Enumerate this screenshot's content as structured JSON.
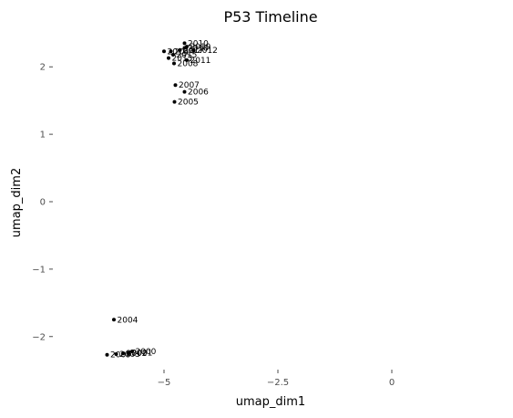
{
  "chart_data": {
    "type": "scatter",
    "title": "P53 Timeline",
    "xlabel": "umap_dim1",
    "ylabel": "umap_dim2",
    "xlim": [
      -7.5,
      2.5
    ],
    "ylim": [
      -2.45,
      2.45
    ],
    "x_ticks": [
      -5,
      -2.5,
      0
    ],
    "x_tick_labels": [
      "−5",
      "−2.5",
      "0"
    ],
    "y_ticks": [
      -2,
      -1,
      0,
      1,
      2
    ],
    "y_tick_labels": [
      "−2",
      "−1",
      "0",
      "1",
      "2"
    ],
    "grid": false,
    "points": [
      {
        "x": -4.55,
        "y": 2.35,
        "label": "2010"
      },
      {
        "x": -4.5,
        "y": 2.3,
        "label": "2019"
      },
      {
        "x": -4.55,
        "y": 2.28,
        "label": "2018"
      },
      {
        "x": -4.35,
        "y": 2.25,
        "label": "2012"
      },
      {
        "x": -4.65,
        "y": 2.25,
        "label": "2017"
      },
      {
        "x": -4.85,
        "y": 2.23,
        "label": "2014"
      },
      {
        "x": -5.0,
        "y": 2.23,
        "label": "2016"
      },
      {
        "x": -4.8,
        "y": 2.18,
        "label": "2015"
      },
      {
        "x": -4.9,
        "y": 2.13,
        "label": "2013"
      },
      {
        "x": -4.5,
        "y": 2.1,
        "label": "2011"
      },
      {
        "x": -4.78,
        "y": 2.05,
        "label": "2008"
      },
      {
        "x": -4.75,
        "y": 1.73,
        "label": "2007"
      },
      {
        "x": -4.55,
        "y": 1.63,
        "label": "2006"
      },
      {
        "x": -4.77,
        "y": 1.48,
        "label": "2005"
      },
      {
        "x": -6.1,
        "y": -1.75,
        "label": "2004"
      },
      {
        "x": -5.7,
        "y": -2.22,
        "label": "2000"
      },
      {
        "x": -5.78,
        "y": -2.24,
        "label": "2001"
      },
      {
        "x": -5.9,
        "y": -2.25,
        "label": "2002"
      },
      {
        "x": -6.05,
        "y": -2.26,
        "label": "2003"
      },
      {
        "x": -6.25,
        "y": -2.27,
        "label": "2009"
      }
    ]
  }
}
